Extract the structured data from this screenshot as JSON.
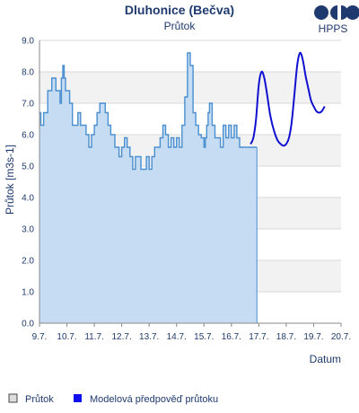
{
  "chart_data": {
    "type": "line",
    "title": "Dluhonice (Bečva)",
    "subtitle": "Průtok",
    "xlabel": "Datum",
    "ylabel": "Průtok [m3s-1]",
    "ylim": [
      0,
      9
    ],
    "y_ticks": [
      "0.0",
      "1.0",
      "2.0",
      "3.0",
      "4.0",
      "5.0",
      "6.0",
      "7.0",
      "8.0",
      "9.0"
    ],
    "x_ticks": [
      "9.7.",
      "10.7.",
      "11.7.",
      "12.7.",
      "13.7.",
      "14.7.",
      "15.7.",
      "16.7.",
      "17.7.",
      "18.7.",
      "19.7.",
      "20.7."
    ],
    "xlim_days": [
      9,
      20
    ],
    "grid": true,
    "legend_position": "bottom-left",
    "series": [
      {
        "name": "Průtok",
        "style": "stepped-area",
        "color": "#4a8fd0",
        "fill": "#c6dcf2",
        "x": [
          9.0,
          9.05,
          9.15,
          9.3,
          9.45,
          9.6,
          9.75,
          9.8,
          9.85,
          9.9,
          9.95,
          10.0,
          10.1,
          10.2,
          10.3,
          10.4,
          10.5,
          10.7,
          10.8,
          10.9,
          11.0,
          11.1,
          11.2,
          11.3,
          11.4,
          11.5,
          11.6,
          11.75,
          11.9,
          12.0,
          12.1,
          12.2,
          12.3,
          12.4,
          12.5,
          12.6,
          12.7,
          12.8,
          12.9,
          13.0,
          13.1,
          13.2,
          13.3,
          13.4,
          13.5,
          13.6,
          13.7,
          13.8,
          13.9,
          14.0,
          14.1,
          14.2,
          14.3,
          14.4,
          14.5,
          14.6,
          14.7,
          14.8,
          14.9,
          15.0,
          15.05,
          15.1,
          15.15,
          15.2,
          15.3,
          15.4,
          15.5,
          15.6,
          15.7,
          15.8,
          15.9,
          16.0,
          16.1,
          16.2,
          16.3,
          16.4,
          16.5,
          16.6,
          16.7,
          16.8
        ],
        "y": [
          6.7,
          6.3,
          6.7,
          7.4,
          7.8,
          7.4,
          7.0,
          7.8,
          8.2,
          7.8,
          7.4,
          7.4,
          7.0,
          6.3,
          6.3,
          6.7,
          6.3,
          6.0,
          5.6,
          6.0,
          6.3,
          6.7,
          7.0,
          7.0,
          6.7,
          6.3,
          6.0,
          5.6,
          5.3,
          5.6,
          5.9,
          5.6,
          5.3,
          4.9,
          5.3,
          5.3,
          4.9,
          4.9,
          5.3,
          4.9,
          5.3,
          5.6,
          5.6,
          5.9,
          6.3,
          6.0,
          5.6,
          5.9,
          5.6,
          5.9,
          5.6,
          6.3,
          7.2,
          8.6,
          8.2,
          6.7,
          6.3,
          6.0,
          5.9,
          5.6,
          5.9,
          6.3,
          6.7,
          7.0,
          6.3,
          5.9,
          5.9,
          5.6,
          6.3,
          5.9,
          6.3,
          5.9,
          6.3,
          5.9,
          5.6,
          5.6,
          5.6,
          5.6,
          5.6,
          5.6
        ]
      },
      {
        "name": "Modelová předpověď průtoku",
        "style": "line",
        "color": "#1010d0",
        "x": [
          16.7,
          16.8,
          16.9,
          17.0,
          17.1,
          17.2,
          17.3,
          17.4,
          17.5,
          17.6,
          17.7,
          17.8,
          17.9,
          18.0,
          18.1,
          18.2,
          18.3,
          18.4,
          18.5,
          18.6,
          18.7,
          18.8,
          18.9,
          19.0,
          19.1,
          19.2,
          19.3,
          19.4
        ],
        "y": [
          5.7,
          5.9,
          6.5,
          7.6,
          8.0,
          7.8,
          7.3,
          6.7,
          6.3,
          6.0,
          5.8,
          5.7,
          5.65,
          5.7,
          5.9,
          6.4,
          7.3,
          8.2,
          8.6,
          8.4,
          7.9,
          7.5,
          7.1,
          6.9,
          6.75,
          6.7,
          6.75,
          6.9
        ]
      }
    ]
  },
  "header": {
    "title": "Dluhonice (Bečva)",
    "subtitle": "Průtok"
  },
  "logo": {
    "text": "HPPS",
    "color": "#1f3a6e"
  },
  "legend": {
    "items": [
      {
        "label": "Průtok",
        "swatch_color": "#dddddd",
        "swatch_border": "#444444"
      },
      {
        "label": "Modelová předpověď průtoku",
        "swatch_color": "#1010ee",
        "swatch_border": "#1010ee"
      }
    ]
  },
  "colors": {
    "text": "#1f3a6e",
    "grid": "#d8d8d8",
    "band": "#f2f2f2",
    "axis": "#888888"
  }
}
